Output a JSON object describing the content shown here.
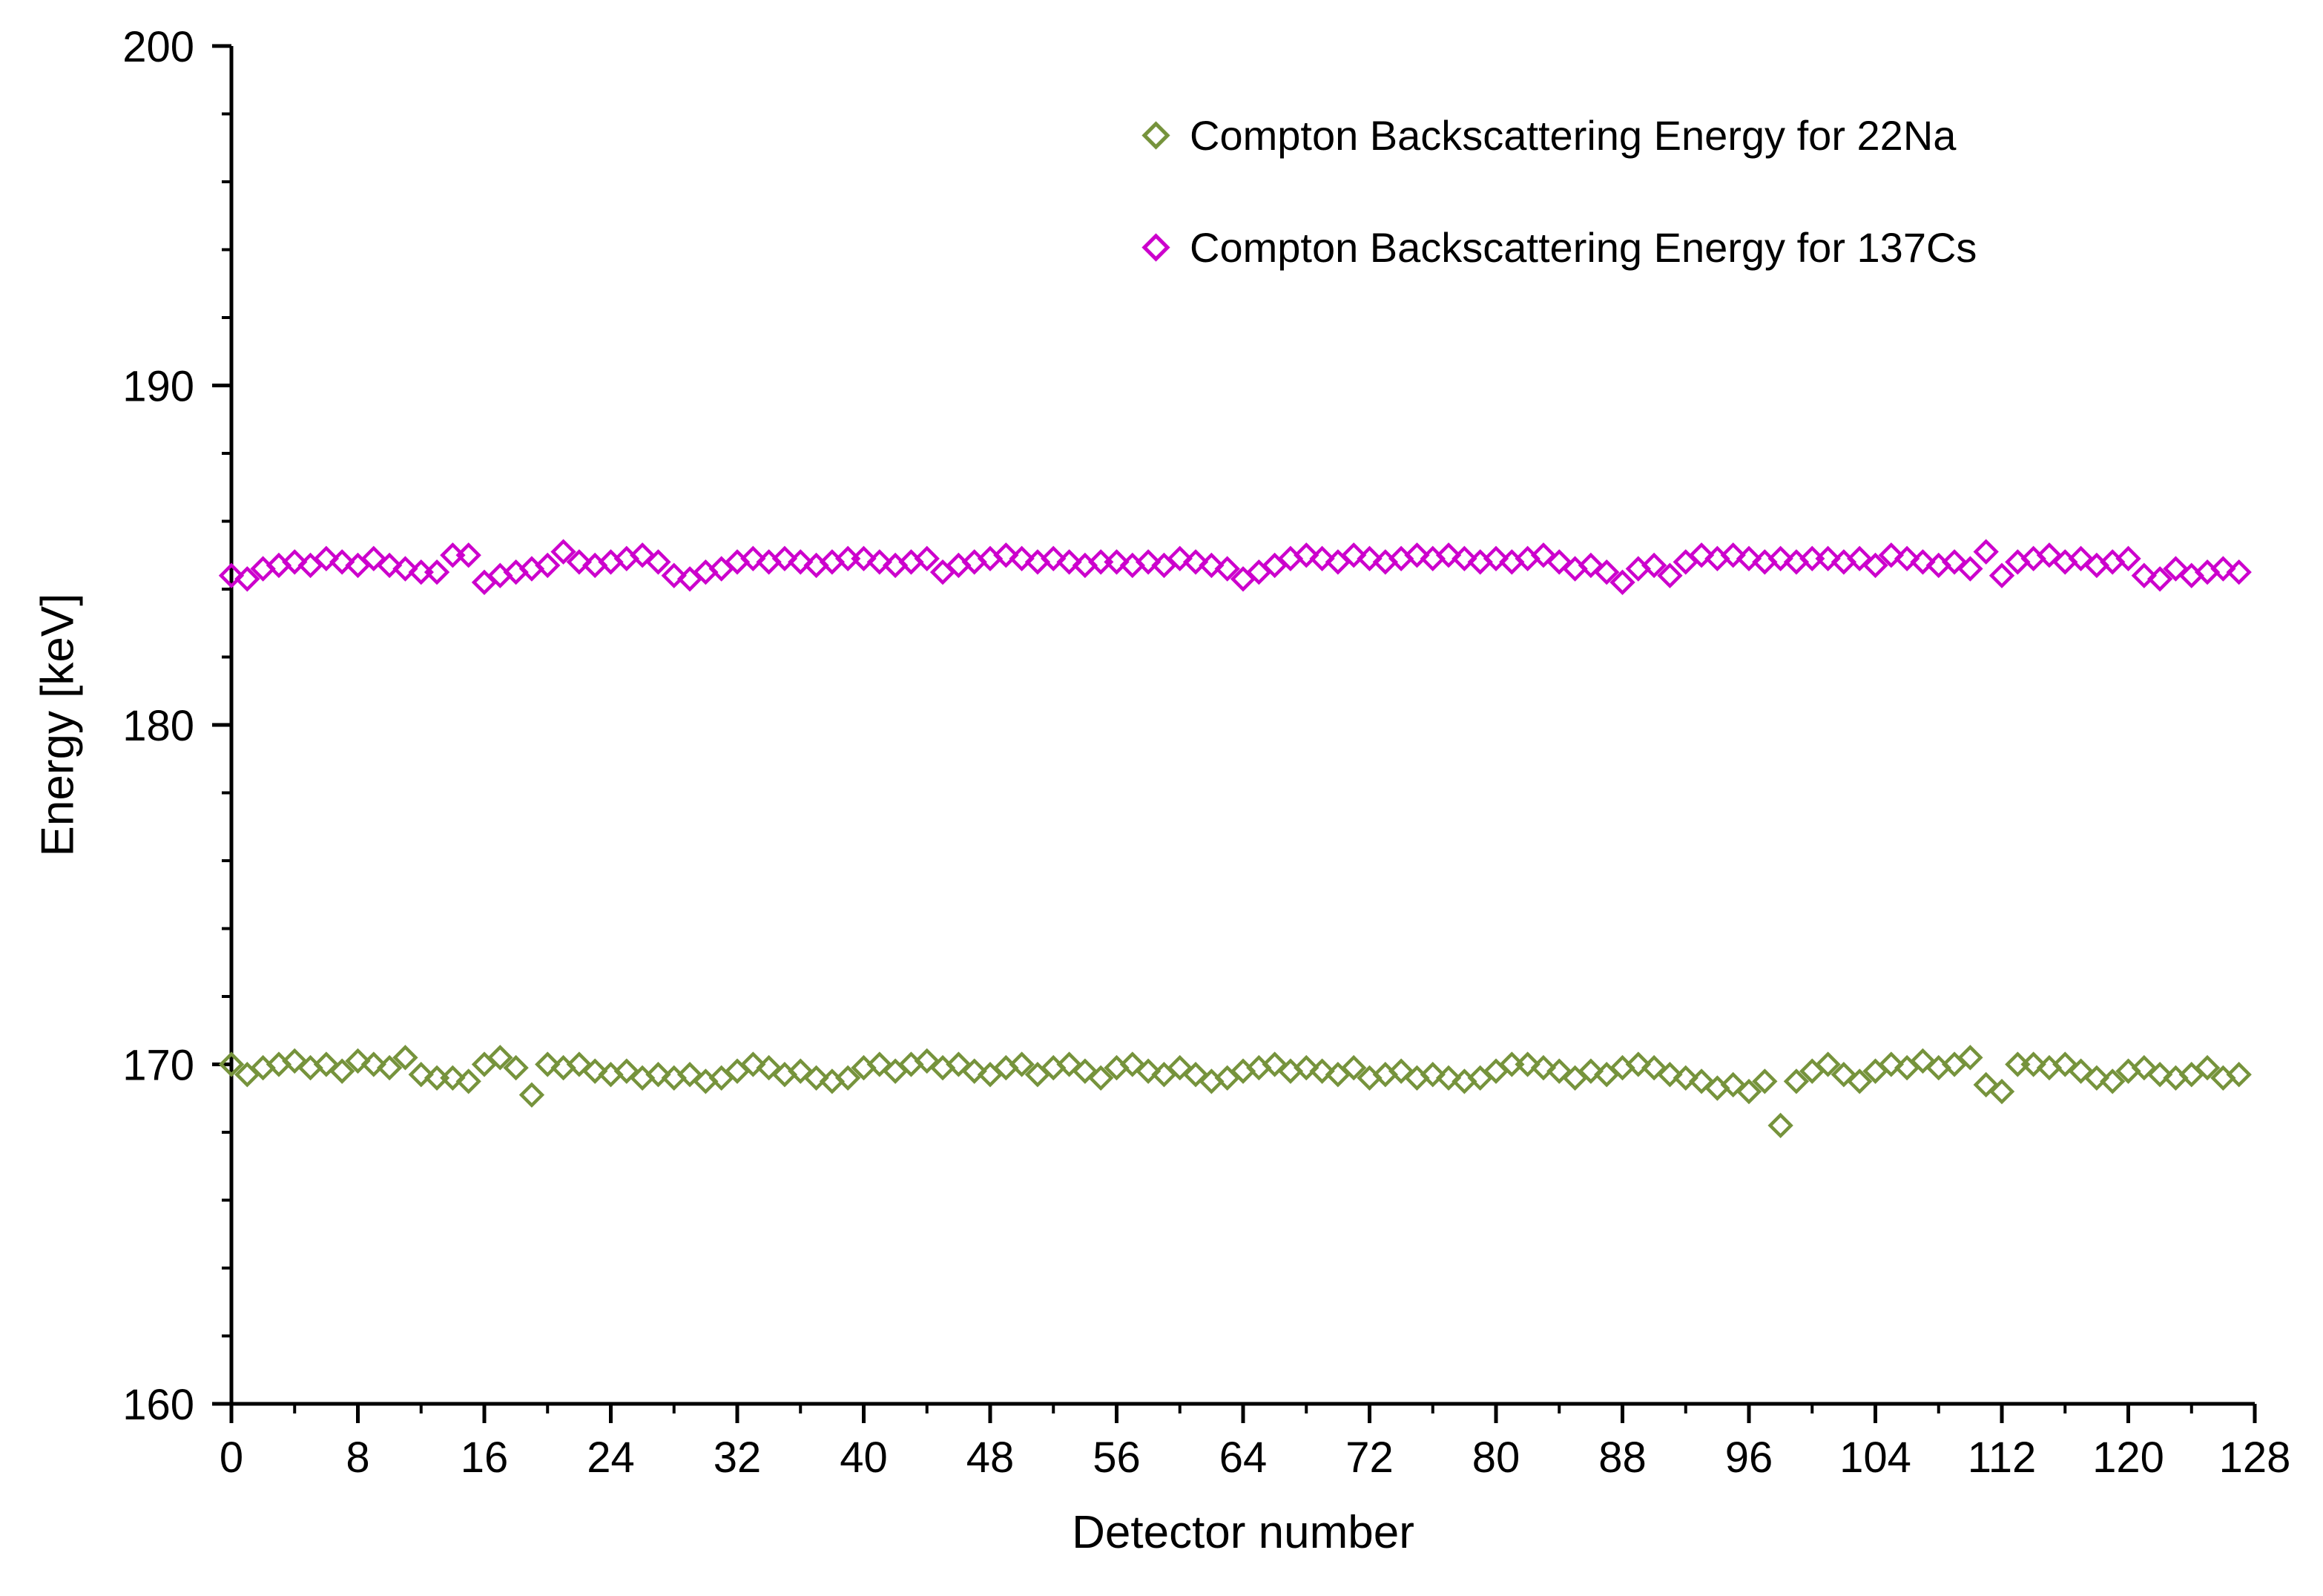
{
  "chart_data": {
    "type": "scatter",
    "title": "",
    "xlabel": "Detector number",
    "ylabel": "Energy [keV]",
    "xlim": [
      0,
      128
    ],
    "ylim": [
      160,
      200
    ],
    "x_major_tick_step": 8,
    "x_minor_tick_step": 4,
    "y_major_tick_step": 10,
    "y_minor_tick_step": 2,
    "x_tick_labels": [
      "0",
      "8",
      "16",
      "24",
      "32",
      "40",
      "48",
      "56",
      "64",
      "72",
      "80",
      "88",
      "96",
      "104",
      "112",
      "120",
      "128"
    ],
    "y_tick_labels": [
      "160",
      "170",
      "180",
      "190",
      "200"
    ],
    "grid": false,
    "legend_position": "top-right-inside",
    "axis_color": "#000000",
    "marker": "open-diamond",
    "x_note": "x value = array index = detector number 0-127",
    "series": [
      {
        "label": "Compton Backscattering Energy for 22Na",
        "color": "#76933C",
        "values": [
          170.0,
          169.7,
          169.9,
          170.0,
          170.1,
          169.9,
          170.0,
          169.8,
          170.1,
          170.0,
          169.9,
          170.2,
          169.7,
          169.6,
          169.6,
          169.5,
          170.0,
          170.2,
          169.9,
          169.1,
          170.0,
          169.9,
          170.0,
          169.8,
          169.7,
          169.8,
          169.6,
          169.7,
          169.6,
          169.7,
          169.5,
          169.6,
          169.8,
          170.0,
          169.9,
          169.7,
          169.8,
          169.6,
          169.5,
          169.6,
          169.9,
          170.0,
          169.8,
          170.0,
          170.1,
          169.9,
          170.0,
          169.8,
          169.7,
          169.9,
          170.0,
          169.7,
          169.9,
          170.0,
          169.8,
          169.6,
          169.9,
          170.0,
          169.8,
          169.7,
          169.9,
          169.7,
          169.5,
          169.6,
          169.8,
          169.9,
          170.0,
          169.8,
          169.9,
          169.8,
          169.7,
          169.9,
          169.6,
          169.7,
          169.8,
          169.6,
          169.7,
          169.6,
          169.5,
          169.6,
          169.8,
          170.0,
          170.0,
          169.9,
          169.8,
          169.6,
          169.8,
          169.7,
          169.9,
          170.0,
          169.9,
          169.7,
          169.6,
          169.5,
          169.3,
          169.4,
          169.2,
          169.5,
          168.2,
          169.5,
          169.8,
          170.0,
          169.7,
          169.5,
          169.8,
          170.0,
          169.9,
          170.1,
          169.9,
          170.0,
          170.2,
          169.4,
          169.2,
          170.0,
          170.0,
          169.9,
          170.0,
          169.8,
          169.6,
          169.5,
          169.8,
          169.9,
          169.7,
          169.6,
          169.7,
          169.9,
          169.6,
          169.7
        ]
      },
      {
        "label": "Compton Backscattering Energy for 137Cs",
        "color": "#CC00CC",
        "values": [
          184.4,
          184.3,
          184.6,
          184.7,
          184.8,
          184.7,
          184.9,
          184.8,
          184.7,
          184.9,
          184.7,
          184.6,
          184.5,
          184.5,
          185.0,
          185.0,
          184.2,
          184.4,
          184.5,
          184.6,
          184.7,
          185.1,
          184.8,
          184.7,
          184.8,
          184.9,
          185.0,
          184.8,
          184.4,
          184.3,
          184.5,
          184.6,
          184.8,
          184.9,
          184.8,
          184.9,
          184.8,
          184.7,
          184.8,
          184.9,
          184.9,
          184.8,
          184.7,
          184.8,
          184.9,
          184.5,
          184.7,
          184.8,
          184.9,
          185.0,
          184.9,
          184.8,
          184.9,
          184.8,
          184.7,
          184.8,
          184.8,
          184.7,
          184.8,
          184.7,
          184.9,
          184.8,
          184.7,
          184.6,
          184.3,
          184.5,
          184.7,
          184.9,
          185.0,
          184.9,
          184.8,
          185.0,
          184.9,
          184.8,
          184.9,
          185.0,
          184.9,
          185.0,
          184.9,
          184.8,
          184.9,
          184.8,
          184.9,
          185.0,
          184.8,
          184.6,
          184.7,
          184.5,
          184.2,
          184.6,
          184.7,
          184.4,
          184.8,
          185.0,
          184.9,
          185.0,
          184.9,
          184.8,
          184.9,
          184.8,
          184.9,
          184.9,
          184.8,
          184.9,
          184.7,
          185.0,
          184.9,
          184.8,
          184.7,
          184.8,
          184.6,
          185.1,
          184.4,
          184.8,
          184.9,
          185.0,
          184.8,
          184.9,
          184.7,
          184.8,
          184.9,
          184.4,
          184.3,
          184.6,
          184.4,
          184.5,
          184.6,
          184.5
        ]
      }
    ]
  }
}
